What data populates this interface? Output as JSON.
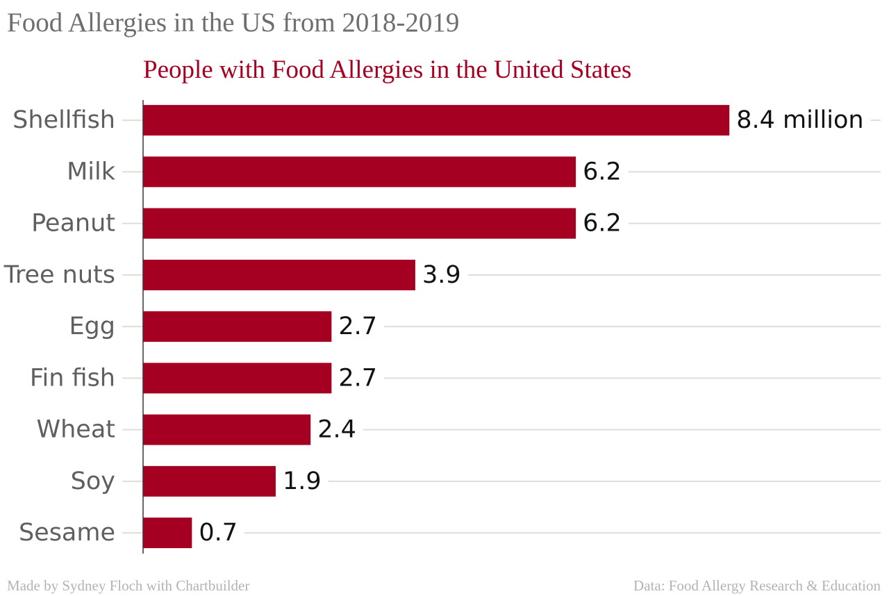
{
  "header": {
    "title": "Food Allergies in the US from 2018-2019"
  },
  "footer": {
    "credit": "Made by Sydney Floch with Chartbuilder",
    "source": "Data: Food Allergy Research & Education"
  },
  "colors": {
    "bar": "#a50021",
    "title": "#a50021",
    "grid": "#dddddd",
    "axis": "#333333"
  },
  "chart_data": {
    "type": "bar",
    "orientation": "horizontal",
    "title": "People with Food Allergies in the United States",
    "xlabel": "",
    "ylabel": "",
    "categories": [
      "Shellfish",
      "Milk",
      "Peanut",
      "Tree nuts",
      "Egg",
      "Fin fish",
      "Wheat",
      "Soy",
      "Sesame"
    ],
    "values": [
      8.4,
      6.2,
      6.2,
      3.9,
      2.7,
      2.7,
      2.4,
      1.9,
      0.7
    ],
    "value_labels": [
      "8.4 million",
      "6.2",
      "6.2",
      "3.9",
      "2.7",
      "2.7",
      "2.4",
      "1.9",
      "0.7"
    ],
    "xlim": [
      0,
      10.5
    ],
    "grid": true,
    "legend": "none"
  }
}
